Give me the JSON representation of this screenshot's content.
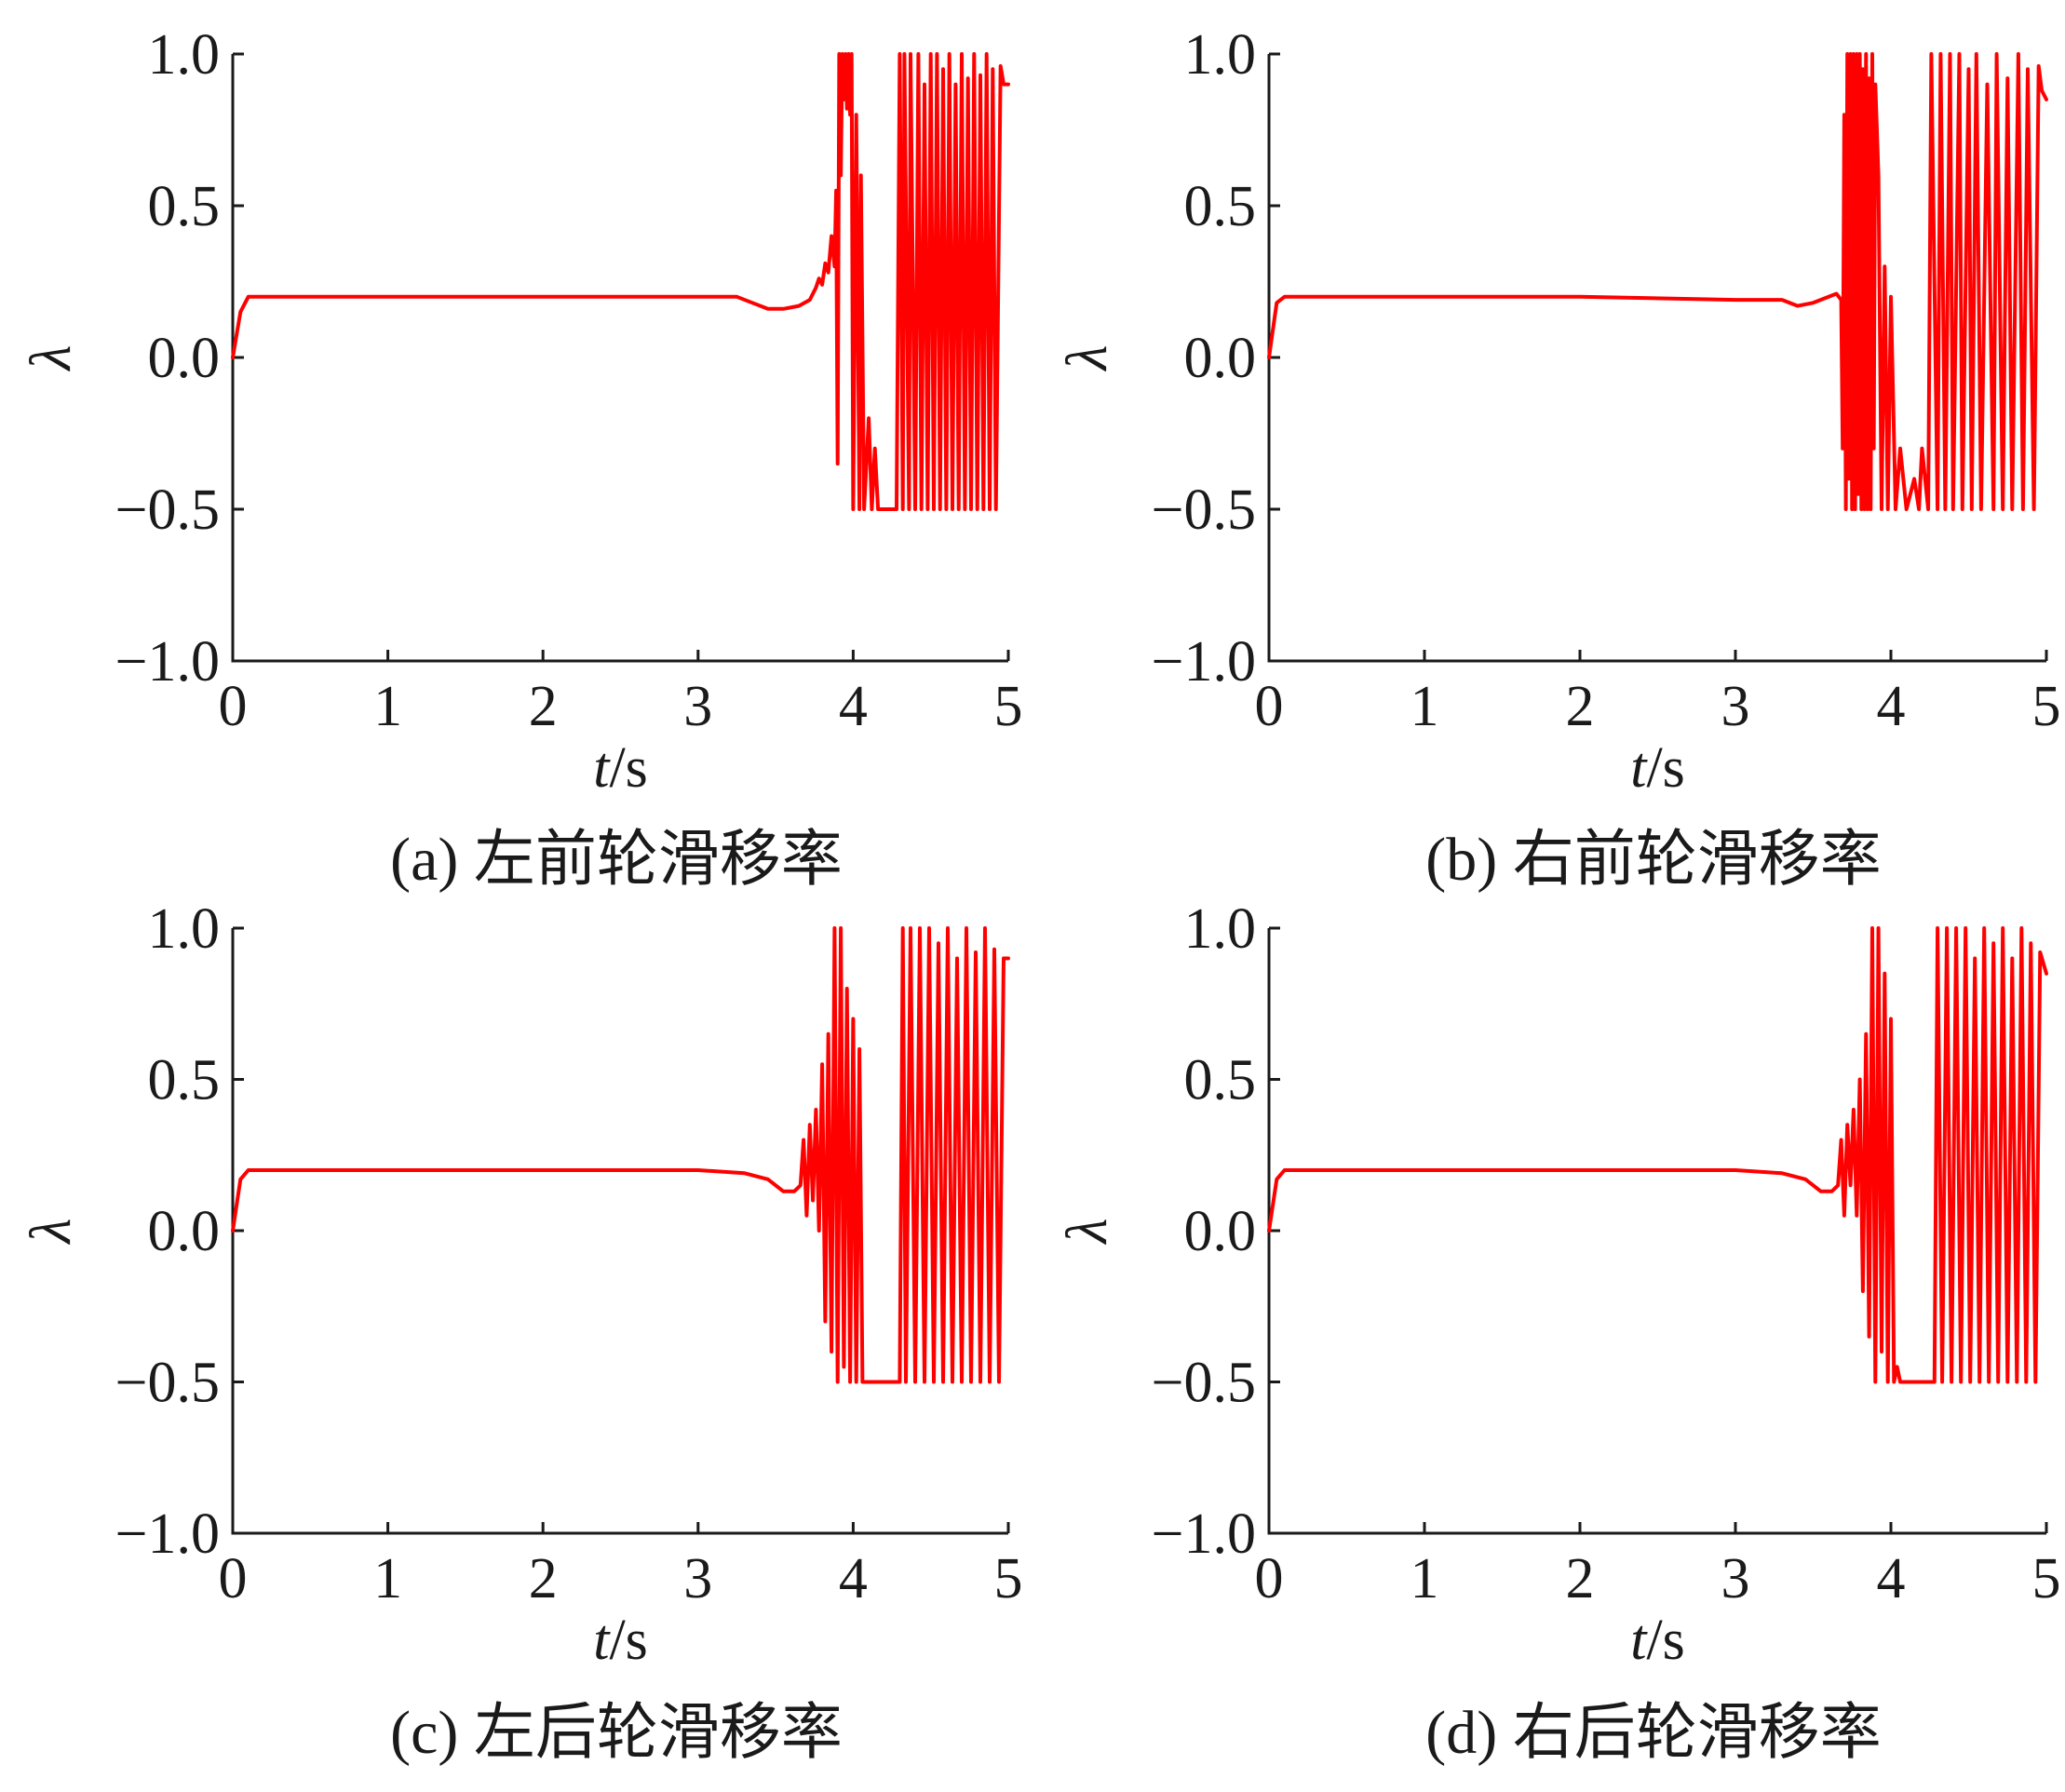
{
  "figure": {
    "panels": [
      {
        "caption": "(a) 左前轮滑移率"
      },
      {
        "caption": "(b) 右前轮滑移率"
      },
      {
        "caption": "(c) 左后轮滑移率"
      },
      {
        "caption": "(d) 右后轮滑移率"
      }
    ]
  },
  "chart_data": [
    {
      "type": "line",
      "title": "(a) 左前轮滑移率",
      "xlabel": "t/s",
      "ylabel": "λ",
      "xlim": [
        0,
        5
      ],
      "ylim": [
        -1.0,
        1.0
      ],
      "xticks": [
        "0",
        "1",
        "2",
        "3",
        "4",
        "5"
      ],
      "yticks": [
        "1.0",
        "0.5",
        "0.0",
        "−0.5",
        "−1.0"
      ],
      "color": "#ff0000",
      "series": [
        {
          "x": [
            0,
            0.05,
            0.1,
            0.5,
            1,
            2,
            3,
            3.25,
            3.35,
            3.45,
            3.55,
            3.65,
            3.72,
            3.76,
            3.78,
            3.8,
            3.82,
            3.84,
            3.86,
            3.88,
            3.89,
            3.9,
            3.91,
            3.92,
            3.93,
            3.94,
            3.95,
            3.96,
            3.97,
            3.98,
            3.99,
            4.0,
            4.02,
            4.04,
            4.05,
            4.07,
            4.1,
            4.12,
            4.14,
            4.16,
            4.19,
            4.22,
            4.25,
            4.28,
            4.3,
            4.32,
            4.33,
            4.36,
            4.37,
            4.4,
            4.42,
            4.44,
            4.46,
            4.48,
            4.5,
            4.52,
            4.54,
            4.56,
            4.58,
            4.6,
            4.62,
            4.64,
            4.66,
            4.68,
            4.7,
            4.72,
            4.74,
            4.76,
            4.78,
            4.8,
            4.82,
            4.84,
            4.86,
            4.88,
            4.9,
            4.92,
            4.95,
            4.97,
            5.0
          ],
          "y": [
            0,
            0.15,
            0.2,
            0.2,
            0.2,
            0.2,
            0.2,
            0.2,
            0.18,
            0.16,
            0.16,
            0.17,
            0.19,
            0.23,
            0.26,
            0.24,
            0.31,
            0.28,
            0.4,
            0.3,
            0.55,
            -0.35,
            1.0,
            0.6,
            1.0,
            0.85,
            1.0,
            0.82,
            1.0,
            0.8,
            1.0,
            -0.5,
            0.8,
            -0.5,
            0.6,
            -0.5,
            -0.2,
            -0.5,
            -0.3,
            -0.5,
            -0.5,
            -0.5,
            -0.5,
            -0.5,
            1.0,
            -0.5,
            1.0,
            -0.5,
            1.0,
            -0.5,
            1.0,
            -0.5,
            0.9,
            -0.5,
            1.0,
            -0.5,
            1.0,
            -0.5,
            0.95,
            -0.5,
            1.0,
            -0.5,
            0.9,
            -0.5,
            1.0,
            -0.5,
            0.92,
            -0.5,
            1.0,
            -0.5,
            0.93,
            -0.5,
            1.0,
            -0.5,
            0.95,
            -0.5,
            0.96,
            0.9,
            0.9
          ]
        }
      ]
    },
    {
      "type": "line",
      "title": "(b) 右前轮滑移率",
      "xlabel": "t/s",
      "ylabel": "λ",
      "xlim": [
        0,
        5
      ],
      "ylim": [
        -1.0,
        1.0
      ],
      "xticks": [
        "0",
        "1",
        "2",
        "3",
        "4",
        "5"
      ],
      "yticks": [
        "1.0",
        "0.5",
        "0.0",
        "−0.5",
        "−1.0"
      ],
      "color": "#ff0000",
      "series": [
        {
          "x": [
            0,
            0.05,
            0.1,
            0.5,
            1,
            2,
            3,
            3.3,
            3.4,
            3.5,
            3.6,
            3.65,
            3.68,
            3.69,
            3.7,
            3.71,
            3.72,
            3.73,
            3.74,
            3.75,
            3.76,
            3.77,
            3.78,
            3.79,
            3.8,
            3.81,
            3.82,
            3.83,
            3.84,
            3.85,
            3.86,
            3.87,
            3.88,
            3.89,
            3.9,
            3.92,
            3.94,
            3.96,
            3.98,
            4.0,
            4.03,
            4.06,
            4.1,
            4.15,
            4.18,
            4.2,
            4.24,
            4.26,
            4.3,
            4.32,
            4.35,
            4.38,
            4.4,
            4.44,
            4.46,
            4.5,
            4.52,
            4.55,
            4.58,
            4.62,
            4.66,
            4.68,
            4.72,
            4.75,
            4.78,
            4.82,
            4.85,
            4.88,
            4.92,
            4.95,
            4.97,
            5.0
          ],
          "y": [
            0,
            0.18,
            0.2,
            0.2,
            0.2,
            0.2,
            0.19,
            0.19,
            0.17,
            0.18,
            0.2,
            0.21,
            0.19,
            -0.3,
            0.8,
            -0.5,
            1.0,
            -0.4,
            1.0,
            -0.5,
            1.0,
            -0.5,
            1.0,
            -0.45,
            1.0,
            -0.5,
            0.95,
            -0.5,
            1.0,
            -0.5,
            0.92,
            -0.5,
            1.0,
            -0.3,
            0.9,
            0.6,
            -0.5,
            0.3,
            -0.5,
            0.2,
            -0.5,
            -0.3,
            -0.5,
            -0.4,
            -0.5,
            -0.3,
            -0.5,
            1.0,
            -0.5,
            1.0,
            -0.5,
            1.0,
            -0.5,
            1.0,
            -0.5,
            0.95,
            -0.5,
            1.0,
            -0.5,
            0.9,
            -0.5,
            1.0,
            -0.5,
            0.92,
            -0.5,
            1.0,
            -0.5,
            0.95,
            -0.5,
            0.96,
            0.88,
            0.85
          ]
        }
      ]
    },
    {
      "type": "line",
      "title": "(c) 左后轮滑移率",
      "xlabel": "t/s",
      "ylabel": "λ",
      "xlim": [
        0,
        5
      ],
      "ylim": [
        -1.0,
        1.0
      ],
      "xticks": [
        "0",
        "1",
        "2",
        "3",
        "4",
        "5"
      ],
      "yticks": [
        "1.0",
        "0.5",
        "0.0",
        "−0.5",
        "−1.0"
      ],
      "color": "#ff0000",
      "series": [
        {
          "x": [
            0,
            0.05,
            0.1,
            0.5,
            1,
            2,
            3,
            3.3,
            3.45,
            3.55,
            3.62,
            3.66,
            3.68,
            3.7,
            3.72,
            3.74,
            3.76,
            3.78,
            3.8,
            3.82,
            3.84,
            3.86,
            3.88,
            3.9,
            3.92,
            3.94,
            3.96,
            3.98,
            4.0,
            4.02,
            4.04,
            4.06,
            4.08,
            4.1,
            4.14,
            4.18,
            4.22,
            4.26,
            4.3,
            4.32,
            4.34,
            4.37,
            4.4,
            4.43,
            4.46,
            4.49,
            4.52,
            4.55,
            4.58,
            4.61,
            4.64,
            4.67,
            4.7,
            4.73,
            4.76,
            4.79,
            4.82,
            4.85,
            4.88,
            4.91,
            4.94,
            4.97,
            5.0
          ],
          "y": [
            0,
            0.17,
            0.2,
            0.2,
            0.2,
            0.2,
            0.2,
            0.19,
            0.17,
            0.13,
            0.13,
            0.15,
            0.3,
            0.05,
            0.35,
            0.1,
            0.4,
            0.0,
            0.55,
            -0.3,
            0.65,
            -0.4,
            1.0,
            -0.5,
            1.0,
            -0.45,
            0.8,
            -0.5,
            0.7,
            -0.5,
            0.6,
            -0.5,
            -0.5,
            -0.5,
            -0.5,
            -0.5,
            -0.5,
            -0.5,
            -0.5,
            1.0,
            -0.5,
            1.0,
            -0.5,
            1.0,
            -0.5,
            1.0,
            -0.5,
            0.95,
            -0.5,
            1.0,
            -0.5,
            0.9,
            -0.5,
            1.0,
            -0.5,
            0.92,
            -0.5,
            1.0,
            -0.5,
            0.93,
            -0.5,
            0.9,
            0.9
          ]
        }
      ]
    },
    {
      "type": "line",
      "title": "(d) 右后轮滑移率",
      "xlabel": "t/s",
      "ylabel": "λ",
      "xlim": [
        0,
        5
      ],
      "ylim": [
        -1.0,
        1.0
      ],
      "xticks": [
        "0",
        "1",
        "2",
        "3",
        "4",
        "5"
      ],
      "yticks": [
        "1.0",
        "0.5",
        "0.0",
        "−0.5",
        "−1.0"
      ],
      "color": "#ff0000",
      "series": [
        {
          "x": [
            0,
            0.05,
            0.1,
            0.5,
            1,
            2,
            3,
            3.3,
            3.45,
            3.55,
            3.62,
            3.66,
            3.68,
            3.7,
            3.72,
            3.74,
            3.76,
            3.78,
            3.8,
            3.82,
            3.84,
            3.86,
            3.88,
            3.9,
            3.92,
            3.94,
            3.96,
            3.98,
            4.0,
            4.02,
            4.04,
            4.06,
            4.1,
            4.14,
            4.18,
            4.22,
            4.26,
            4.28,
            4.3,
            4.33,
            4.36,
            4.39,
            4.42,
            4.45,
            4.48,
            4.51,
            4.54,
            4.57,
            4.6,
            4.63,
            4.66,
            4.69,
            4.72,
            4.75,
            4.78,
            4.81,
            4.84,
            4.87,
            4.9,
            4.93,
            4.96,
            5.0
          ],
          "y": [
            0,
            0.17,
            0.2,
            0.2,
            0.2,
            0.2,
            0.2,
            0.19,
            0.17,
            0.13,
            0.13,
            0.15,
            0.3,
            0.05,
            0.35,
            0.15,
            0.4,
            0.05,
            0.5,
            -0.2,
            0.65,
            -0.35,
            1.0,
            -0.5,
            1.0,
            -0.4,
            0.85,
            -0.5,
            0.7,
            -0.5,
            -0.45,
            -0.5,
            -0.5,
            -0.5,
            -0.5,
            -0.5,
            -0.5,
            -0.5,
            1.0,
            -0.5,
            1.0,
            -0.5,
            1.0,
            -0.5,
            1.0,
            -0.5,
            0.9,
            -0.5,
            1.0,
            -0.5,
            0.95,
            -0.5,
            1.0,
            -0.5,
            0.9,
            -0.5,
            1.0,
            -0.5,
            0.95,
            -0.5,
            0.92,
            0.85
          ]
        }
      ]
    }
  ]
}
